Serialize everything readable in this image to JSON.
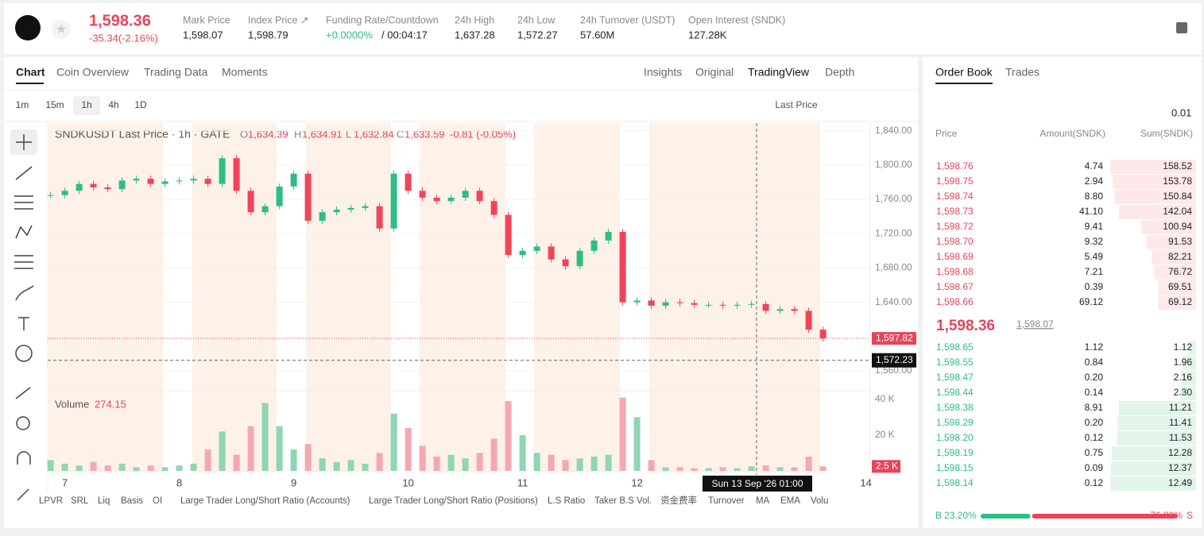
{
  "header": {
    "price": "1,598.36",
    "change": "-35.34(-2.16%)",
    "stats": [
      {
        "label": "Mark Price",
        "value": "1,598.07"
      },
      {
        "label": "Index Price ↗",
        "value": "1,598.79"
      },
      {
        "label": "Funding Rate/Countdown",
        "value": "+0.0000%",
        "extra": "/ 00:04:17"
      },
      {
        "label": "24h High",
        "value": "1,637.28"
      },
      {
        "label": "24h Low",
        "value": "1,572.27"
      },
      {
        "label": "24h Turnover (USDT)",
        "value": "57.60M"
      },
      {
        "label": "Open Interest (SNDK)",
        "value": "127.28K"
      }
    ]
  },
  "tabs": [
    "Chart",
    "Coin Overview",
    "Trading Data",
    "Moments"
  ],
  "views": [
    "Insights",
    "Original",
    "TradingView",
    "Depth"
  ],
  "intervals": [
    "1m",
    "15m",
    "1h",
    "4h",
    "1D"
  ],
  "price_source": "Last Price",
  "chart_data": {
    "type": "candlestick",
    "legend": "SNDKUSDT Last Price · 1h · GATE",
    "ohlc": [
      {
        "key": "O",
        "value": "1,634.39"
      },
      {
        "key": "H",
        "value": "1,634.91"
      },
      {
        "key": "L",
        "value": "1,632.84"
      },
      {
        "key": "C",
        "value": "1,633.59"
      }
    ],
    "change": "-0.81 (-0.05%)",
    "closes": [
      1765,
      1770,
      1778,
      1774,
      1772,
      1782,
      1784,
      1778,
      1781,
      1782,
      1784,
      1778,
      1808,
      1770,
      1745,
      1752,
      1775,
      1790,
      1735,
      1745,
      1748,
      1750,
      1752,
      1726,
      1790,
      1770,
      1762,
      1758,
      1762,
      1770,
      1758,
      1742,
      1695,
      1700,
      1705,
      1690,
      1682,
      1700,
      1712,
      1722,
      1640,
      1642,
      1636,
      1640,
      1639,
      1637,
      1637,
      1636,
      1637,
      1638,
      1630,
      1632,
      1630,
      1608,
      1597.82
    ],
    "volumes": [
      6000,
      4000,
      3000,
      5000,
      3000,
      4000,
      2000,
      3000,
      2000,
      3000,
      4000,
      12000,
      22000,
      9000,
      25000,
      38000,
      25000,
      12000,
      15000,
      7000,
      5000,
      6000,
      4000,
      10000,
      32000,
      24000,
      14000,
      8000,
      9000,
      7000,
      10000,
      18000,
      39000,
      20000,
      10000,
      9000,
      6000,
      7000,
      8000,
      9000,
      41000,
      30000,
      6000,
      2000,
      2000,
      1500,
      1500,
      2000,
      1500,
      2500,
      3000,
      2000,
      2000,
      8000,
      2500
    ],
    "xlim": [
      -0.2,
      57.3
    ],
    "xticks": [
      {
        "value": 1,
        "label": "7"
      },
      {
        "value": 9,
        "label": "8"
      },
      {
        "value": 17,
        "label": "9"
      },
      {
        "value": 25,
        "label": "10"
      },
      {
        "value": 33,
        "label": "11"
      },
      {
        "value": 41,
        "label": "12"
      },
      {
        "value": 57,
        "label": "14"
      }
    ],
    "ylim": [
      1539.6,
      1849
    ],
    "yticks": [
      {
        "value": 1560,
        "label": "1,560.00"
      },
      {
        "value": 1640,
        "label": "1,640.00"
      },
      {
        "value": 1680,
        "label": "1,680.00"
      },
      {
        "value": 1720,
        "label": "1,720.00"
      },
      {
        "value": 1760,
        "label": "1,760.00"
      },
      {
        "value": 1800,
        "label": "1,800.00"
      },
      {
        "value": 1840,
        "label": "1,840.00"
      }
    ],
    "last_price": {
      "value": 1597.82,
      "label": "1,597.82"
    },
    "crosshair": {
      "value": 1572.23,
      "label": "1,572.23",
      "time": "Sun 13 Sep '26   01:00"
    },
    "volume_title": "Volume",
    "volume_value": "274.15",
    "volume_ylim": [
      0,
      43500
    ],
    "volume_yticks": [
      {
        "value": 20000,
        "label": "20 K"
      },
      {
        "value": 40000,
        "label": "40 K"
      }
    ],
    "volume_last": {
      "value": 2500,
      "label": "2.5 K"
    }
  },
  "indicators": [
    "LPVR",
    "SRL",
    "Liq",
    "Basis",
    "OI",
    "Large Trader Long/Short Ratio (Accounts)",
    "Large Trader Long/Short Ratio (Positions)",
    "L.S Ratio",
    "Taker B.S Vol.",
    "资金费率",
    "Turnover",
    "MA",
    "EMA",
    "Volu"
  ],
  "order_book": {
    "tabs": [
      "Order Book",
      "Trades"
    ],
    "precision": "0.01",
    "columns": [
      "Price",
      "Amount(SNDK)",
      "Sum(SNDK)"
    ],
    "asks": [
      [
        "1,598.76",
        "4.74",
        "158.52"
      ],
      [
        "1,598.75",
        "2.94",
        "153.78"
      ],
      [
        "1,598.74",
        "8.80",
        "150.84"
      ],
      [
        "1,598.73",
        "41.10",
        "142.04"
      ],
      [
        "1,598.72",
        "9.41",
        "100.94"
      ],
      [
        "1,598.70",
        "9.32",
        "91.53"
      ],
      [
        "1,598.69",
        "5.49",
        "82.21"
      ],
      [
        "1,598.68",
        "7.21",
        "76.72"
      ],
      [
        "1,598.67",
        "0.39",
        "69.51"
      ],
      [
        "1,598.66",
        "69.12",
        "69.12"
      ]
    ],
    "mid": {
      "price": "1,598.36",
      "mark": "1,598.07"
    },
    "bids": [
      [
        "1,598.65",
        "1.12",
        "1.12"
      ],
      [
        "1,598.55",
        "0.84",
        "1.96"
      ],
      [
        "1,598.47",
        "0.20",
        "2.16"
      ],
      [
        "1,598.44",
        "0.14",
        "2.30"
      ],
      [
        "1,598.38",
        "8.91",
        "11.21"
      ],
      [
        "1,598.29",
        "0.20",
        "11.41"
      ],
      [
        "1,598.20",
        "0.12",
        "11.53"
      ],
      [
        "1,598.19",
        "0.75",
        "12.28"
      ],
      [
        "1,598.15",
        "0.09",
        "12.37"
      ],
      [
        "1,598.14",
        "0.12",
        "12.49"
      ]
    ],
    "ratio": {
      "buy_key": "B",
      "buy": "23.20%",
      "sell": "76.80%",
      "sell_key": "S"
    }
  }
}
